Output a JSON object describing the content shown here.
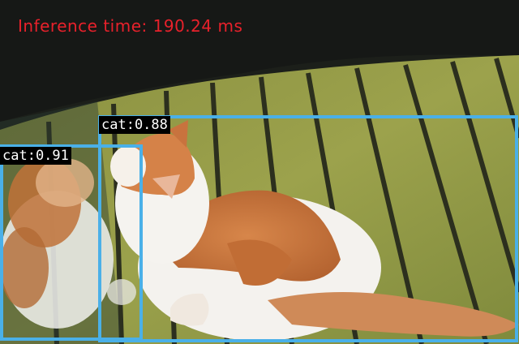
{
  "inference": {
    "text": "Inference time: 190.24 ms",
    "color": "#e8212b"
  },
  "box_color": "#4ab0e8",
  "detections": [
    {
      "label": "cat:0.88",
      "class": "cat",
      "confidence": 0.88
    },
    {
      "label": "cat:0.91",
      "class": "cat",
      "confidence": 0.91
    }
  ]
}
